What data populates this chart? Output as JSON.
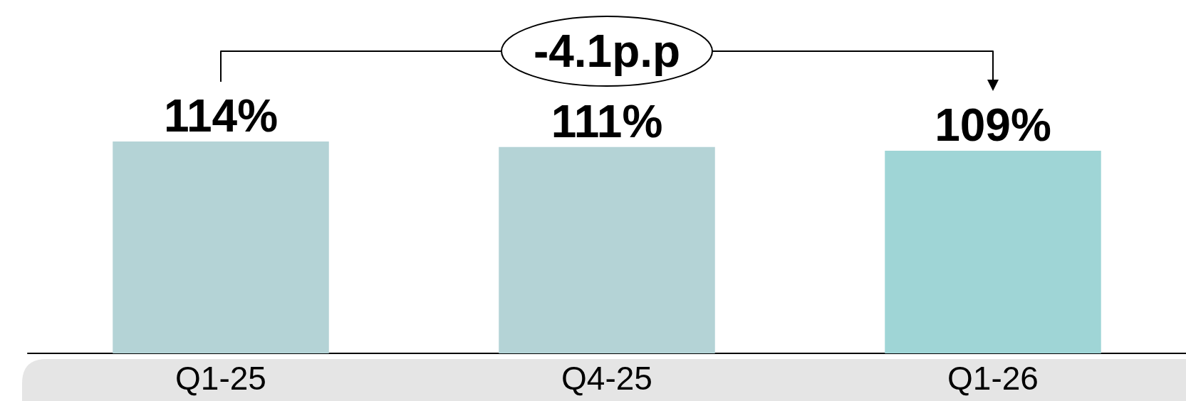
{
  "chart_data": {
    "type": "bar",
    "categories": [
      "Q1-25",
      "Q4-25",
      "Q1-26"
    ],
    "values": [
      114,
      111,
      109
    ],
    "colors": [
      "#b4d3d6",
      "#b4d3d6",
      "#9fd5d6"
    ],
    "value_labels": [
      "114%",
      "111%",
      "109%"
    ],
    "annotations": [
      "-4.1p.p"
    ],
    "tick_labels": "x"
  }
}
